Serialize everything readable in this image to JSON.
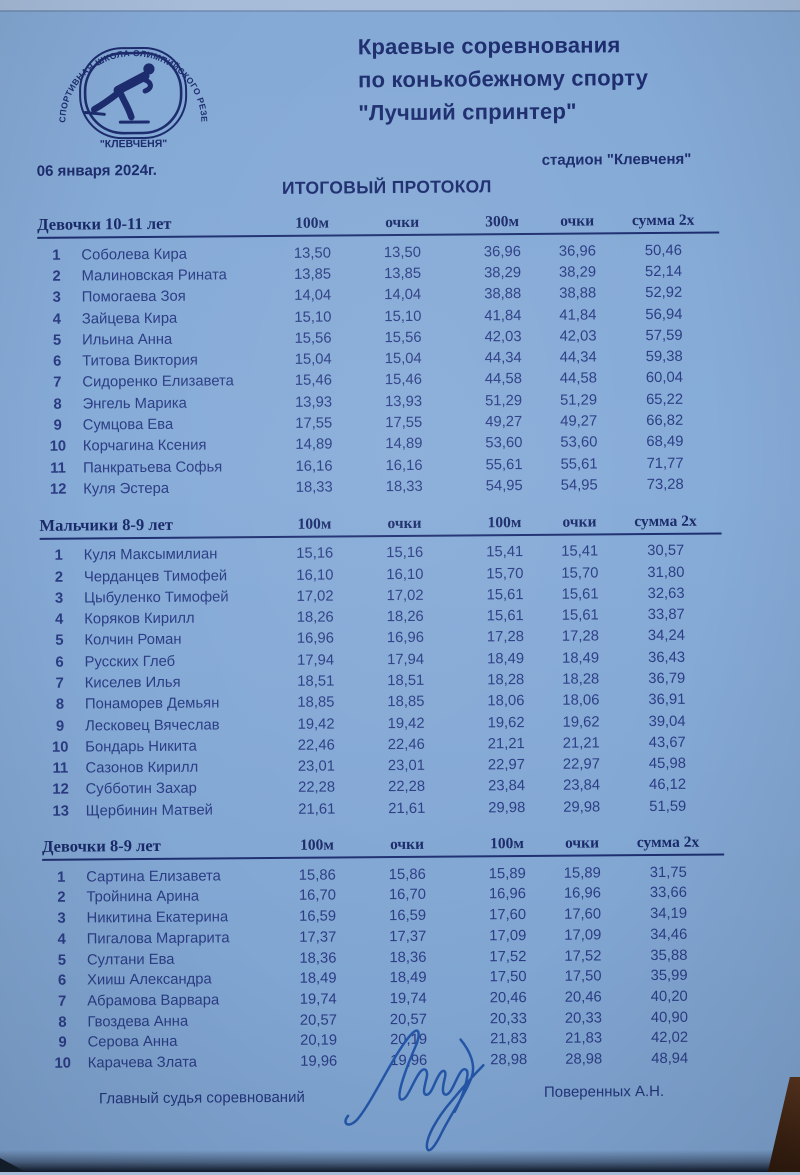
{
  "colors": {
    "paper": "#84a9d5",
    "ink": "#1c2c6e",
    "data_ink": "#2b3c84",
    "pen": "#2456a8",
    "table_edge_brown": "#3a2112"
  },
  "header": {
    "logo": {
      "arc_text": "СПОРТИВНАЯ ШКОЛА ОЛИМПИЙСКОГО РЕЗЕРВА ПО КОНЬКОБЕЖНОМУ СПОРТУ",
      "club_name": "\"КЛЕВЧЕНЯ\""
    },
    "title_lines": {
      "0": "Краевые соревнования",
      "1": "по конькобежному спорту",
      "2": "\"Лучший спринтер\""
    },
    "date": "06 января 2024г.",
    "venue": "стадион \"Клевченя\"",
    "protocol_title": "ИТОГОВЫЙ ПРОТОКОЛ"
  },
  "tables": [
    {
      "group": "Девочки 10-11 лет",
      "columns": [
        "100м",
        "очки",
        "300м",
        "очки",
        "сумма 2х"
      ],
      "rows": [
        [
          "1",
          "Соболева Кира",
          "13,50",
          "13,50",
          "36,96",
          "36,96",
          "50,46"
        ],
        [
          "2",
          "Малиновская Рината",
          "13,85",
          "13,85",
          "38,29",
          "38,29",
          "52,14"
        ],
        [
          "3",
          "Помогаева Зоя",
          "14,04",
          "14,04",
          "38,88",
          "38,88",
          "52,92"
        ],
        [
          "4",
          "Зайцева Кира",
          "15,10",
          "15,10",
          "41,84",
          "41,84",
          "56,94"
        ],
        [
          "5",
          "Ильина Анна",
          "15,56",
          "15,56",
          "42,03",
          "42,03",
          "57,59"
        ],
        [
          "6",
          "Титова Виктория",
          "15,04",
          "15,04",
          "44,34",
          "44,34",
          "59,38"
        ],
        [
          "7",
          "Сидоренко Елизавета",
          "15,46",
          "15,46",
          "44,58",
          "44,58",
          "60,04"
        ],
        [
          "8",
          "Энгель Марика",
          "13,93",
          "13,93",
          "51,29",
          "51,29",
          "65,22"
        ],
        [
          "9",
          "Сумцова Ева",
          "17,55",
          "17,55",
          "49,27",
          "49,27",
          "66,82"
        ],
        [
          "10",
          "Корчагина Ксения",
          "14,89",
          "14,89",
          "53,60",
          "53,60",
          "68,49"
        ],
        [
          "11",
          "Панкратьева Софья",
          "16,16",
          "16,16",
          "55,61",
          "55,61",
          "71,77"
        ],
        [
          "12",
          "Куля Эстера",
          "18,33",
          "18,33",
          "54,95",
          "54,95",
          "73,28"
        ]
      ]
    },
    {
      "group": "Мальчики 8-9 лет",
      "columns": [
        "100м",
        "очки",
        "100м",
        "очки",
        "сумма 2х"
      ],
      "rows": [
        [
          "1",
          "Куля Максымилиан",
          "15,16",
          "15,16",
          "15,41",
          "15,41",
          "30,57"
        ],
        [
          "2",
          "Черданцев Тимофей",
          "16,10",
          "16,10",
          "15,70",
          "15,70",
          "31,80"
        ],
        [
          "3",
          "Цыбуленко Тимофей",
          "17,02",
          "17,02",
          "15,61",
          "15,61",
          "32,63"
        ],
        [
          "4",
          "Коряков Кирилл",
          "18,26",
          "18,26",
          "15,61",
          "15,61",
          "33,87"
        ],
        [
          "5",
          "Колчин Роман",
          "16,96",
          "16,96",
          "17,28",
          "17,28",
          "34,24"
        ],
        [
          "6",
          "Русских Глеб",
          "17,94",
          "17,94",
          "18,49",
          "18,49",
          "36,43"
        ],
        [
          "7",
          "Киселев Илья",
          "18,51",
          "18,51",
          "18,28",
          "18,28",
          "36,79"
        ],
        [
          "8",
          "Понаморев Демьян",
          "18,85",
          "18,85",
          "18,06",
          "18,06",
          "36,91"
        ],
        [
          "9",
          "Лесковец Вячеслав",
          "19,42",
          "19,42",
          "19,62",
          "19,62",
          "39,04"
        ],
        [
          "10",
          "Бондарь Никита",
          "22,46",
          "22,46",
          "21,21",
          "21,21",
          "43,67"
        ],
        [
          "11",
          "Сазонов Кирилл",
          "23,01",
          "23,01",
          "22,97",
          "22,97",
          "45,98"
        ],
        [
          "12",
          "Субботин Захар",
          "22,28",
          "22,28",
          "23,84",
          "23,84",
          "46,12"
        ],
        [
          "13",
          "Щербинин Матвей",
          "21,61",
          "21,61",
          "29,98",
          "29,98",
          "51,59"
        ]
      ]
    },
    {
      "group": "Девочки 8-9 лет",
      "columns": [
        "100м",
        "очки",
        "100м",
        "очки",
        "сумма 2х"
      ],
      "rows": [
        [
          "1",
          "Сартина Елизавета",
          "15,86",
          "15,86",
          "15,89",
          "15,89",
          "31,75"
        ],
        [
          "2",
          "Тройнина Арина",
          "16,70",
          "16,70",
          "16,96",
          "16,96",
          "33,66"
        ],
        [
          "3",
          "Никитина Екатерина",
          "16,59",
          "16,59",
          "17,60",
          "17,60",
          "34,19"
        ],
        [
          "4",
          "Пигалова Маргарита",
          "17,37",
          "17,37",
          "17,09",
          "17,09",
          "34,46"
        ],
        [
          "5",
          "Султани Ева",
          "18,36",
          "18,36",
          "17,52",
          "17,52",
          "35,88"
        ],
        [
          "6",
          "Хииш Александра",
          "18,49",
          "18,49",
          "17,50",
          "17,50",
          "35,99"
        ],
        [
          "7",
          "Абрамова Варвара",
          "19,74",
          "19,74",
          "20,46",
          "20,46",
          "40,20"
        ],
        [
          "8",
          "Гвоздева Анна",
          "20,57",
          "20,57",
          "20,33",
          "20,33",
          "40,90"
        ],
        [
          "9",
          "Серова Анна",
          "20,19",
          "20,19",
          "21,83",
          "21,83",
          "42,02"
        ],
        [
          "10",
          "Карачева Злата",
          "19,96",
          "19,96",
          "28,98",
          "28,98",
          "48,94"
        ]
      ]
    }
  ],
  "footer": {
    "judge_label": "Главный судья соревнований",
    "judge_name": "Поверенных А.Н."
  }
}
